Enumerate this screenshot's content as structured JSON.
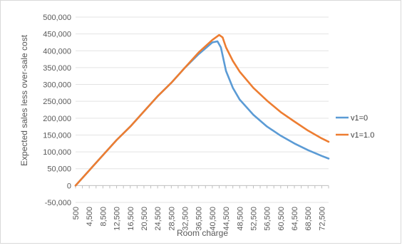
{
  "chart_data": {
    "type": "line",
    "title": "",
    "xlabel": "Room charge",
    "ylabel": "Expected sales less over-sale cost",
    "ylim": [
      -50000,
      500000
    ],
    "xlim": [
      500,
      74500
    ],
    "yticks": [
      -50000,
      0,
      50000,
      100000,
      150000,
      200000,
      250000,
      300000,
      350000,
      400000,
      450000,
      500000
    ],
    "ytick_labels": [
      "-50,000",
      "0",
      "50,000",
      "100,000",
      "150,000",
      "200,000",
      "250,000",
      "300,000",
      "350,000",
      "400,000",
      "450,000",
      "500,000"
    ],
    "xticks": [
      500,
      2500,
      4500,
      6500,
      8500,
      10500,
      12500,
      14500,
      16500,
      18500,
      20500,
      22500,
      24500,
      26500,
      28500,
      30500,
      32500,
      34500,
      36500,
      38500,
      40500,
      42500,
      44500,
      46500,
      48500,
      50500,
      52500,
      54500,
      56500,
      58500,
      60500,
      62500,
      64500,
      66500,
      68500,
      70500,
      72500,
      74500
    ],
    "xtick_labels": [
      "500",
      "",
      "4,500",
      "",
      "8,500",
      "",
      "12,500",
      "",
      "16,500",
      "",
      "20,500",
      "",
      "24,500",
      "",
      "28,500",
      "",
      "32,500",
      "",
      "36,500",
      "",
      "40,500",
      "",
      "44,500",
      "",
      "48,500",
      "",
      "52,500",
      "",
      "56,500",
      "",
      "60,500",
      "",
      "64,500",
      "",
      "68,500",
      "",
      "72,500",
      ""
    ],
    "grid": "horizontal",
    "legend": "right",
    "series": [
      {
        "name": "v1=0",
        "color": "#5b9bd5",
        "x": [
          500,
          4500,
          8500,
          12500,
          16500,
          20500,
          24500,
          28500,
          32500,
          36500,
          40500,
          42000,
          43000,
          44500,
          46500,
          48500,
          52500,
          56500,
          60500,
          64500,
          68500,
          72500,
          74500
        ],
        "y": [
          0,
          45000,
          90000,
          135000,
          175000,
          220000,
          265000,
          305000,
          350000,
          390000,
          425000,
          428000,
          410000,
          340000,
          290000,
          255000,
          210000,
          175000,
          148000,
          125000,
          105000,
          88000,
          80000
        ]
      },
      {
        "name": "v1=1.0",
        "color": "#ed7d31",
        "x": [
          500,
          4500,
          8500,
          12500,
          16500,
          20500,
          24500,
          28500,
          32500,
          36500,
          40500,
          42500,
          43500,
          44500,
          46500,
          48500,
          52500,
          56500,
          60500,
          64500,
          68500,
          72500,
          74500
        ],
        "y": [
          0,
          45000,
          90000,
          135000,
          175000,
          220000,
          265000,
          305000,
          350000,
          395000,
          432000,
          447000,
          440000,
          410000,
          370000,
          338000,
          290000,
          252000,
          218000,
          190000,
          163000,
          140000,
          130000
        ]
      }
    ]
  }
}
